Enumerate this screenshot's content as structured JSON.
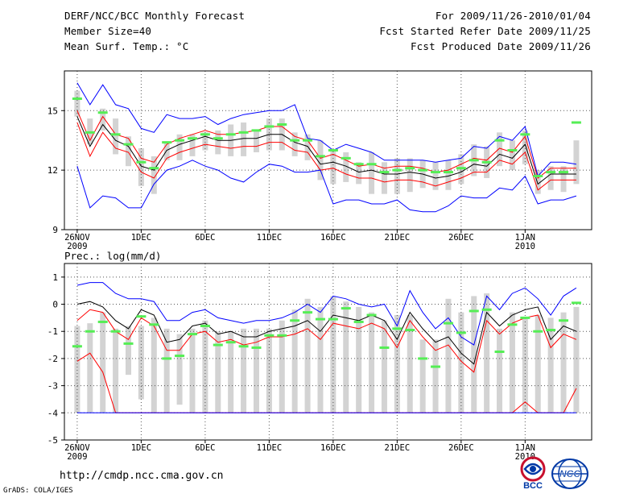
{
  "header": {
    "title": "DERF/NCC/BCC Monthly Forecast",
    "member_size": "Member Size=40",
    "variable": "Mean Surf. Temp.: °C",
    "period": "For 2009/11/26-2010/01/04",
    "refer_date": "Fcst Started Refer Date 2009/11/25",
    "produced_date": "Fcst Produced Date 2009/11/26"
  },
  "footer": {
    "url": "http://cmdp.ncc.cma.gov.cn",
    "grads": "GrADS: COLA/IGES",
    "logo_bcc": "BCC",
    "logo_ncc": "NCC"
  },
  "colors": {
    "box": "#d3d3d3",
    "mean": "#000000",
    "range": "#0000ff",
    "spread": "#ff0000",
    "obs": "#55ee55",
    "grid": "#555555"
  },
  "chart_data": [
    {
      "type": "line",
      "title": "Mean Surf. Temp.: °C",
      "ylabel": "Mean Surf. Temp. (°C)",
      "ylim": [
        9,
        17
      ],
      "yticks": [
        9,
        12,
        15
      ],
      "xtick_labels": [
        {
          "day": 1,
          "label": "26NOV",
          "sub": "2009"
        },
        {
          "day": 6,
          "label": "1DEC"
        },
        {
          "day": 11,
          "label": "6DEC"
        },
        {
          "day": 16,
          "label": "11DEC"
        },
        {
          "day": 21,
          "label": "16DEC"
        },
        {
          "day": 26,
          "label": "21DEC"
        },
        {
          "day": 31,
          "label": "26DEC"
        },
        {
          "day": 36,
          "label": "1JAN",
          "sub": "2010"
        }
      ],
      "x": [
        1,
        2,
        3,
        4,
        5,
        6,
        7,
        8,
        9,
        10,
        11,
        12,
        13,
        14,
        15,
        16,
        17,
        18,
        19,
        20,
        21,
        22,
        23,
        24,
        25,
        26,
        27,
        28,
        29,
        30,
        31,
        32,
        33,
        34,
        35,
        36,
        37,
        38,
        39,
        40
      ],
      "series": [
        {
          "name": "ensemble mean",
          "color": "#000000",
          "values": [
            14.7,
            13.2,
            14.3,
            13.5,
            13.2,
            12.2,
            12.0,
            13.0,
            13.3,
            13.5,
            13.7,
            13.5,
            13.5,
            13.6,
            13.6,
            13.8,
            13.8,
            13.4,
            13.2,
            12.3,
            12.4,
            12.2,
            11.9,
            12.0,
            11.8,
            11.8,
            11.9,
            11.8,
            11.6,
            11.7,
            11.9,
            12.3,
            12.2,
            12.8,
            12.6,
            13.3,
            11.3,
            11.8,
            11.8,
            11.8
          ]
        },
        {
          "name": "mean + spread",
          "color": "#ff0000",
          "values": [
            15.0,
            13.5,
            14.7,
            13.8,
            13.6,
            12.6,
            12.4,
            13.3,
            13.6,
            13.8,
            14.0,
            13.8,
            13.8,
            13.9,
            14.0,
            14.2,
            14.2,
            13.7,
            13.5,
            12.6,
            12.8,
            12.5,
            12.2,
            12.3,
            12.1,
            12.2,
            12.2,
            12.1,
            11.9,
            12.0,
            12.3,
            12.6,
            12.5,
            13.1,
            12.9,
            13.7,
            11.6,
            12.1,
            12.1,
            12.1
          ]
        },
        {
          "name": "mean - spread",
          "color": "#ff0000",
          "values": [
            14.4,
            12.7,
            13.9,
            13.1,
            12.9,
            11.9,
            11.6,
            12.6,
            12.9,
            13.1,
            13.3,
            13.2,
            13.1,
            13.2,
            13.2,
            13.4,
            13.4,
            13.0,
            12.9,
            12.0,
            12.1,
            11.8,
            11.6,
            11.6,
            11.4,
            11.5,
            11.5,
            11.4,
            11.2,
            11.4,
            11.6,
            11.9,
            11.9,
            12.5,
            12.3,
            12.9,
            11.0,
            11.5,
            11.5,
            11.5
          ]
        },
        {
          "name": "ensemble max",
          "color": "#0000ff",
          "values": [
            16.4,
            15.3,
            16.3,
            15.3,
            15.1,
            14.1,
            13.9,
            14.8,
            14.6,
            14.6,
            14.7,
            14.3,
            14.6,
            14.8,
            14.9,
            15.0,
            15.0,
            15.3,
            13.6,
            13.5,
            13.0,
            13.3,
            13.1,
            12.9,
            12.5,
            12.5,
            12.5,
            12.5,
            12.4,
            12.5,
            12.6,
            13.2,
            13.1,
            13.7,
            13.5,
            14.2,
            11.7,
            12.4,
            12.4,
            12.3
          ]
        },
        {
          "name": "ensemble min",
          "color": "#0000ff",
          "values": [
            12.2,
            10.1,
            10.7,
            10.6,
            10.1,
            10.1,
            11.3,
            12.0,
            12.2,
            12.5,
            12.2,
            12.0,
            11.6,
            11.4,
            11.9,
            12.3,
            12.2,
            11.9,
            11.9,
            12.0,
            10.3,
            10.5,
            10.5,
            10.3,
            10.3,
            10.5,
            10.0,
            9.9,
            9.9,
            10.2,
            10.7,
            10.6,
            10.6,
            11.1,
            11.0,
            11.7,
            10.3,
            10.5,
            10.5,
            10.7
          ]
        }
      ],
      "observed": [
        15.6,
        13.9,
        14.9,
        13.8,
        13.3,
        12.4,
        12.1,
        13.4,
        13.5,
        13.6,
        13.8,
        13.6,
        13.8,
        13.9,
        14.0,
        14.2,
        14.3,
        13.5,
        13.5,
        12.7,
        13.0,
        12.6,
        12.3,
        12.3,
        11.9,
        12.0,
        12.1,
        12.0,
        11.9,
        11.9,
        12.1,
        12.5,
        12.4,
        13.5,
        13.0,
        13.8,
        11.7,
        11.9,
        11.9,
        14.4
      ],
      "boxes": [
        [
          14.7,
          16.0
        ],
        [
          13.3,
          14.6
        ],
        [
          14.0,
          15.1
        ],
        [
          12.8,
          14.6
        ],
        [
          12.2,
          13.7
        ],
        [
          11.2,
          13.1
        ],
        [
          10.8,
          12.7
        ],
        [
          12.5,
          13.4
        ],
        [
          12.5,
          13.8
        ],
        [
          12.7,
          13.8
        ],
        [
          13.0,
          13.9
        ],
        [
          12.8,
          14.0
        ],
        [
          12.7,
          14.3
        ],
        [
          12.7,
          14.4
        ],
        [
          12.9,
          14.0
        ],
        [
          13.0,
          14.6
        ],
        [
          13.0,
          14.6
        ],
        [
          12.7,
          13.9
        ],
        [
          12.5,
          13.8
        ],
        [
          11.5,
          13.5
        ],
        [
          11.3,
          13.0
        ],
        [
          11.4,
          12.9
        ],
        [
          11.3,
          12.4
        ],
        [
          10.8,
          12.9
        ],
        [
          10.8,
          12.4
        ],
        [
          10.8,
          12.6
        ],
        [
          10.9,
          12.6
        ],
        [
          11.1,
          12.5
        ],
        [
          11.0,
          12.4
        ],
        [
          11.0,
          12.5
        ],
        [
          11.3,
          12.8
        ],
        [
          11.7,
          13.3
        ],
        [
          11.6,
          13.2
        ],
        [
          12.2,
          13.9
        ],
        [
          12.0,
          13.5
        ],
        [
          12.3,
          14.0
        ],
        [
          10.8,
          12.0
        ],
        [
          11.0,
          12.2
        ],
        [
          10.9,
          12.2
        ],
        [
          11.3,
          13.5
        ]
      ]
    },
    {
      "type": "line",
      "title": "Prec.: log(mm/d)",
      "ylabel": "Prec. log(mm/d)",
      "ylim": [
        -5,
        1.5
      ],
      "yticks": [
        -5,
        -4,
        -3,
        -2,
        -1,
        0,
        1
      ],
      "xtick_labels": [
        {
          "day": 1,
          "label": "26NOV",
          "sub": "2009"
        },
        {
          "day": 6,
          "label": "1DEC"
        },
        {
          "day": 11,
          "label": "6DEC"
        },
        {
          "day": 16,
          "label": "11DEC"
        },
        {
          "day": 21,
          "label": "16DEC"
        },
        {
          "day": 26,
          "label": "21DEC"
        },
        {
          "day": 31,
          "label": "26DEC"
        },
        {
          "day": 36,
          "label": "1JAN",
          "sub": "2010"
        }
      ],
      "x": [
        1,
        2,
        3,
        4,
        5,
        6,
        7,
        8,
        9,
        10,
        11,
        12,
        13,
        14,
        15,
        16,
        17,
        18,
        19,
        20,
        21,
        22,
        23,
        24,
        25,
        26,
        27,
        28,
        29,
        30,
        31,
        32,
        33,
        34,
        35,
        36,
        37,
        38,
        39,
        40
      ],
      "series": [
        {
          "name": "ensemble mean",
          "color": "#000000",
          "values": [
            0.0,
            0.1,
            -0.1,
            -0.6,
            -0.9,
            -0.2,
            -0.4,
            -1.4,
            -1.3,
            -0.8,
            -0.7,
            -1.1,
            -1.0,
            -1.2,
            -1.2,
            -1.0,
            -0.9,
            -0.8,
            -0.6,
            -1.0,
            -0.4,
            -0.5,
            -0.6,
            -0.4,
            -0.6,
            -1.3,
            -0.3,
            -0.9,
            -1.4,
            -1.2,
            -1.8,
            -2.2,
            -0.3,
            -0.8,
            -0.4,
            -0.2,
            -0.1,
            -1.3,
            -0.8,
            -1.0
          ]
        },
        {
          "name": "mean + spread",
          "color": "#ff0000",
          "values": [
            -0.6,
            -0.2,
            -0.3,
            -1.0,
            -1.3,
            -0.5,
            -0.8,
            -1.7,
            -1.7,
            -1.1,
            -1.0,
            -1.4,
            -1.3,
            -1.5,
            -1.4,
            -1.2,
            -1.2,
            -1.1,
            -0.9,
            -1.3,
            -0.7,
            -0.8,
            -0.9,
            -0.7,
            -0.9,
            -1.6,
            -0.6,
            -1.2,
            -1.7,
            -1.5,
            -2.1,
            -2.5,
            -0.6,
            -1.1,
            -0.7,
            -0.5,
            -0.4,
            -1.6,
            -1.1,
            -1.3
          ]
        },
        {
          "name": "mean - spread",
          "color": "#ff0000",
          "values": [
            -2.1,
            -1.8,
            -2.5,
            -4.0,
            -4.0,
            -4.0,
            -4.0,
            -4.0,
            -4.0,
            -4.0,
            -4.0,
            -4.0,
            -4.0,
            -4.0,
            -4.0,
            -4.0,
            -4.0,
            -4.0,
            -4.0,
            -4.0,
            -4.0,
            -4.0,
            -4.0,
            -4.0,
            -4.0,
            -4.0,
            -4.0,
            -4.0,
            -4.0,
            -4.0,
            -4.0,
            -4.0,
            -4.0,
            -4.0,
            -4.0,
            -3.6,
            -4.0,
            -4.0,
            -4.0,
            -3.1
          ]
        },
        {
          "name": "ensemble max",
          "color": "#0000ff",
          "values": [
            0.7,
            0.8,
            0.8,
            0.4,
            0.2,
            0.2,
            0.1,
            -0.6,
            -0.6,
            -0.3,
            -0.2,
            -0.5,
            -0.6,
            -0.7,
            -0.6,
            -0.6,
            -0.5,
            -0.3,
            0.0,
            -0.3,
            0.3,
            0.2,
            0.0,
            -0.1,
            0.0,
            -0.8,
            0.5,
            -0.3,
            -0.9,
            -0.5,
            -1.2,
            -1.5,
            0.3,
            -0.2,
            0.4,
            0.6,
            0.2,
            -0.4,
            0.3,
            0.6
          ]
        },
        {
          "name": "ensemble min",
          "color": "#0000ff",
          "values": [
            -4.0,
            -4.0,
            -4.0,
            -4.0,
            -4.0,
            -4.0,
            -4.0,
            -4.0,
            -4.0,
            -4.0,
            -4.0,
            -4.0,
            -4.0,
            -4.0,
            -4.0,
            -4.0,
            -4.0,
            -4.0,
            -4.0,
            -4.0,
            -4.0,
            -4.0,
            -4.0,
            -4.0,
            -4.0,
            -4.0,
            -4.0,
            -4.0,
            -4.0,
            -4.0,
            -4.0,
            -4.0,
            -4.0,
            -4.0,
            -4.0,
            -4.0,
            -4.0,
            -4.0,
            -4.0,
            -4.0
          ]
        }
      ],
      "observed": [
        -1.55,
        -1.0,
        -0.65,
        -1.0,
        -1.45,
        -0.45,
        -0.75,
        -2.0,
        -1.9,
        -1.1,
        -0.8,
        -1.5,
        -1.4,
        -1.55,
        -1.6,
        -1.15,
        -1.15,
        -0.6,
        -0.3,
        -0.55,
        -0.55,
        -0.15,
        -0.65,
        -0.4,
        -1.6,
        -0.9,
        -0.95,
        -2.0,
        -2.3,
        -0.7,
        -1.05,
        -0.25,
        -0.2,
        -1.75,
        -0.75,
        -0.5,
        -1.0,
        -0.95,
        -0.6,
        0.05
      ],
      "boxes": [
        [
          -4.0,
          -0.8
        ],
        [
          -4.0,
          -0.7
        ],
        [
          -4.0,
          -0.3
        ],
        [
          -4.0,
          -0.9
        ],
        [
          -2.6,
          -0.8
        ],
        [
          -3.5,
          -0.8
        ],
        [
          -4.0,
          -0.5
        ],
        [
          -4.0,
          -0.9
        ],
        [
          -3.7,
          -1.1
        ],
        [
          -4.0,
          -0.9
        ],
        [
          -4.0,
          -0.6
        ],
        [
          -4.0,
          -1.0
        ],
        [
          -4.0,
          -1.0
        ],
        [
          -4.0,
          -0.9
        ],
        [
          -4.0,
          -0.9
        ],
        [
          -4.0,
          -0.9
        ],
        [
          -4.0,
          -0.6
        ],
        [
          -4.0,
          -0.2
        ],
        [
          -4.0,
          0.2
        ],
        [
          -4.0,
          -0.1
        ],
        [
          -4.0,
          0.3
        ],
        [
          -4.0,
          0.1
        ],
        [
          -4.0,
          -0.1
        ],
        [
          -4.0,
          -0.3
        ],
        [
          -4.0,
          -0.6
        ],
        [
          -4.0,
          -0.4
        ],
        [
          -4.0,
          -0.4
        ],
        [
          -4.0,
          -1.3
        ],
        [
          -4.0,
          -1.3
        ],
        [
          -4.0,
          0.2
        ],
        [
          -4.0,
          -0.3
        ],
        [
          -4.0,
          0.3
        ],
        [
          -4.0,
          0.4
        ],
        [
          -4.0,
          -0.9
        ],
        [
          -4.0,
          -0.3
        ],
        [
          -4.0,
          -0.5
        ],
        [
          -4.0,
          -0.4
        ],
        [
          -4.0,
          -0.5
        ],
        [
          -4.0,
          -0.3
        ],
        [
          -4.0,
          -0.1
        ]
      ]
    }
  ]
}
